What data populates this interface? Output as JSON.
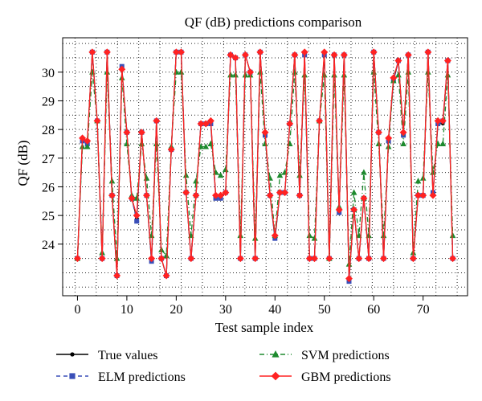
{
  "chart_data": {
    "type": "line",
    "title": "QF (dB) predictions comparison",
    "xlabel": "Test sample index",
    "ylabel": "QF (dB)",
    "xlim": [
      -3,
      79
    ],
    "ylim": [
      22.2,
      31.2
    ],
    "xticks": [
      0,
      10,
      20,
      30,
      40,
      50,
      60,
      70
    ],
    "yticks": [
      24,
      25,
      26,
      27,
      28,
      29,
      30
    ],
    "grid": true,
    "legend_position": "bottom",
    "x": [
      0,
      1,
      2,
      3,
      4,
      5,
      6,
      7,
      8,
      9,
      10,
      11,
      12,
      13,
      14,
      15,
      16,
      17,
      18,
      19,
      20,
      21,
      22,
      23,
      24,
      25,
      26,
      27,
      28,
      29,
      30,
      31,
      32,
      33,
      34,
      35,
      36,
      37,
      38,
      39,
      40,
      41,
      42,
      43,
      44,
      45,
      46,
      47,
      48,
      49,
      50,
      51,
      52,
      53,
      54,
      55,
      56,
      57,
      58,
      59,
      60,
      61,
      62,
      63,
      64,
      65,
      66,
      67,
      68,
      69,
      70,
      71,
      72,
      73,
      74,
      75,
      76
    ],
    "series": [
      {
        "name": "True values",
        "color": "#000000",
        "marker": "circle",
        "dash": "",
        "values": [
          23.5,
          27.6,
          27.6,
          30.7,
          28.3,
          23.5,
          30.7,
          25.7,
          22.9,
          30.1,
          27.9,
          25.6,
          24.9,
          27.9,
          25.7,
          23.4,
          28.3,
          23.5,
          22.9,
          27.3,
          30.7,
          30.7,
          25.8,
          23.5,
          25.7,
          28.2,
          28.2,
          28.2,
          25.7,
          25.7,
          25.8,
          30.6,
          30.5,
          23.5,
          30.6,
          30.0,
          23.5,
          30.7,
          27.8,
          25.7,
          24.2,
          25.8,
          25.8,
          28.2,
          30.6,
          25.7,
          30.6,
          23.5,
          23.5,
          28.3,
          30.6,
          23.5,
          30.6,
          25.2,
          30.6,
          22.8,
          25.2,
          23.5,
          25.6,
          23.5,
          30.7,
          27.9,
          23.5,
          27.7,
          29.7,
          30.4,
          27.9,
          30.6,
          23.5,
          25.7,
          25.7,
          30.7,
          25.7,
          28.2,
          28.2,
          30.4,
          23.5
        ]
      },
      {
        "name": "ELM predictions",
        "color": "#3a4fb8",
        "marker": "square",
        "dash": "5,4",
        "values": [
          23.5,
          27.6,
          27.5,
          30.7,
          28.3,
          23.5,
          30.7,
          25.7,
          22.9,
          30.2,
          27.9,
          25.6,
          24.8,
          27.9,
          25.7,
          23.4,
          28.3,
          23.5,
          22.9,
          27.3,
          30.7,
          30.7,
          25.8,
          23.5,
          25.7,
          28.2,
          28.2,
          28.2,
          25.6,
          25.6,
          25.8,
          30.6,
          30.5,
          23.5,
          30.6,
          30.0,
          23.5,
          30.7,
          27.8,
          25.7,
          24.2,
          25.8,
          25.8,
          28.2,
          30.6,
          25.7,
          30.6,
          23.5,
          23.5,
          28.3,
          30.6,
          23.5,
          30.6,
          25.1,
          30.6,
          22.7,
          25.2,
          23.5,
          25.6,
          23.5,
          30.7,
          27.9,
          23.5,
          27.6,
          29.7,
          30.4,
          27.8,
          30.6,
          23.5,
          25.7,
          25.7,
          30.7,
          25.8,
          28.2,
          28.3,
          30.4,
          23.5
        ]
      },
      {
        "name": "SVM predictions",
        "color": "#1e8a2e",
        "marker": "triangle",
        "dash": "6,3,1,3",
        "values": [
          23.5,
          27.4,
          27.4,
          30.0,
          28.3,
          23.7,
          30.0,
          26.2,
          23.5,
          29.8,
          27.5,
          25.7,
          25.6,
          27.5,
          26.3,
          24.3,
          27.5,
          23.8,
          23.6,
          27.4,
          30.0,
          30.0,
          26.4,
          24.3,
          26.2,
          27.4,
          27.4,
          27.5,
          26.5,
          26.4,
          26.6,
          29.9,
          29.9,
          24.3,
          29.9,
          29.9,
          24.2,
          30.0,
          27.5,
          26.3,
          24.3,
          26.4,
          26.5,
          27.5,
          30.0,
          26.4,
          29.9,
          24.3,
          24.2,
          28.3,
          29.9,
          23.5,
          29.9,
          25.3,
          29.9,
          23.3,
          25.8,
          24.3,
          26.5,
          24.3,
          30.0,
          27.5,
          24.3,
          27.4,
          29.7,
          29.9,
          27.5,
          30.0,
          23.7,
          26.2,
          26.3,
          30.0,
          26.5,
          27.5,
          27.5,
          29.9,
          24.3
        ]
      },
      {
        "name": "GBM predictions",
        "color": "#ff2222",
        "marker": "diamond",
        "dash": "",
        "values": [
          23.5,
          27.7,
          27.6,
          30.7,
          28.3,
          23.5,
          30.7,
          25.7,
          22.9,
          30.1,
          27.9,
          25.6,
          25.0,
          27.9,
          25.7,
          23.5,
          28.3,
          23.5,
          22.9,
          27.3,
          30.7,
          30.7,
          25.8,
          23.5,
          25.7,
          28.2,
          28.2,
          28.3,
          25.7,
          25.7,
          25.8,
          30.6,
          30.5,
          23.5,
          30.6,
          30.0,
          23.5,
          30.7,
          27.9,
          25.7,
          24.3,
          25.8,
          25.8,
          28.2,
          30.6,
          25.7,
          30.7,
          23.5,
          23.5,
          28.3,
          30.7,
          23.5,
          30.6,
          25.2,
          30.6,
          22.8,
          25.2,
          23.5,
          25.6,
          23.5,
          30.7,
          27.9,
          23.5,
          27.7,
          29.8,
          30.4,
          27.9,
          30.6,
          23.5,
          25.7,
          25.7,
          30.7,
          25.7,
          28.3,
          28.3,
          30.4,
          23.5
        ]
      }
    ]
  }
}
